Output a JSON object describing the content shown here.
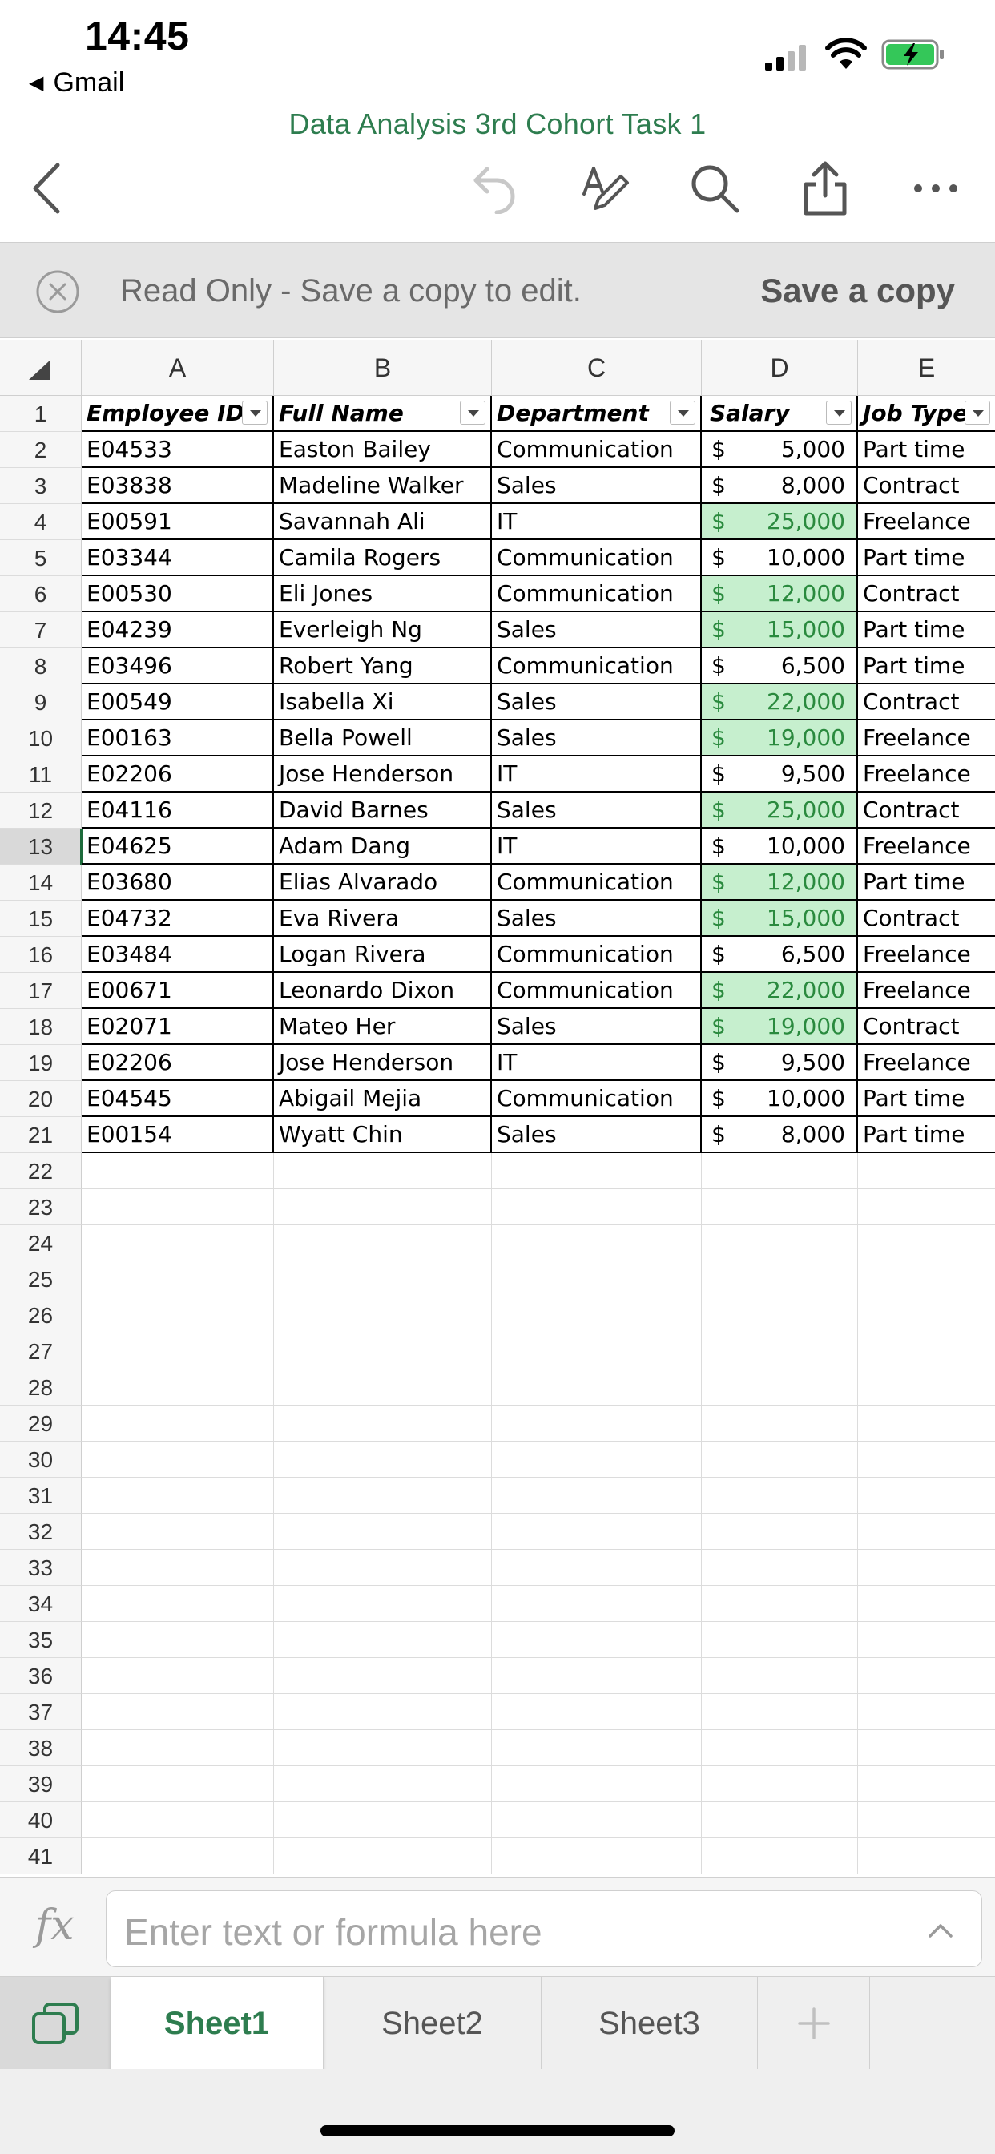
{
  "status_bar": {
    "time": "14:45",
    "back_app": "Gmail"
  },
  "document": {
    "title": "Data Analysis  3rd Cohort Task 1"
  },
  "toolbar": {
    "icons": [
      "back-chevron-icon",
      "undo-icon",
      "draw-pen-icon",
      "search-icon",
      "share-icon",
      "more-icon"
    ]
  },
  "banner": {
    "text": "Read Only - Save a copy to edit.",
    "action": "Save a copy"
  },
  "columns": [
    "A",
    "B",
    "C",
    "D",
    "E"
  ],
  "table": {
    "headers": [
      "Employee ID",
      "Full Name",
      "Department",
      "Salary",
      "Job Type"
    ],
    "rows": [
      {
        "id": "E04533",
        "name": "Easton Bailey",
        "dept": "Communication",
        "currency": "$",
        "salary": "5,000",
        "type": "Part time",
        "highlight": false
      },
      {
        "id": "E03838",
        "name": "Madeline Walker",
        "dept": "Sales",
        "currency": "$",
        "salary": "8,000",
        "type": "Contract",
        "highlight": false
      },
      {
        "id": "E00591",
        "name": "Savannah Ali",
        "dept": "IT",
        "currency": "$",
        "salary": "25,000",
        "type": "Freelance",
        "highlight": true
      },
      {
        "id": "E03344",
        "name": "Camila Rogers",
        "dept": "Communication",
        "currency": "$",
        "salary": "10,000",
        "type": "Part time",
        "highlight": false
      },
      {
        "id": "E00530",
        "name": "Eli Jones",
        "dept": "Communication",
        "currency": "$",
        "salary": "12,000",
        "type": "Contract",
        "highlight": true
      },
      {
        "id": "E04239",
        "name": "Everleigh Ng",
        "dept": "Sales",
        "currency": "$",
        "salary": "15,000",
        "type": "Part time",
        "highlight": true
      },
      {
        "id": "E03496",
        "name": "Robert Yang",
        "dept": "Communication",
        "currency": "$",
        "salary": "6,500",
        "type": "Part time",
        "highlight": false
      },
      {
        "id": "E00549",
        "name": "Isabella Xi",
        "dept": "Sales",
        "currency": "$",
        "salary": "22,000",
        "type": "Contract",
        "highlight": true
      },
      {
        "id": "E00163",
        "name": "Bella Powell",
        "dept": "Sales",
        "currency": "$",
        "salary": "19,000",
        "type": "Freelance",
        "highlight": true
      },
      {
        "id": "E02206",
        "name": "Jose Henderson",
        "dept": "IT",
        "currency": "$",
        "salary": "9,500",
        "type": "Freelance",
        "highlight": false
      },
      {
        "id": "E04116",
        "name": "David Barnes",
        "dept": "Sales",
        "currency": "$",
        "salary": "25,000",
        "type": "Contract",
        "highlight": true
      },
      {
        "id": "E04625",
        "name": "Adam Dang",
        "dept": "IT",
        "currency": "$",
        "salary": "10,000",
        "type": "Freelance",
        "highlight": false
      },
      {
        "id": "E03680",
        "name": "Elias Alvarado",
        "dept": "Communication",
        "currency": "$",
        "salary": "12,000",
        "type": "Part time",
        "highlight": true
      },
      {
        "id": "E04732",
        "name": "Eva Rivera",
        "dept": "Sales",
        "currency": "$",
        "salary": "15,000",
        "type": "Contract",
        "highlight": true
      },
      {
        "id": "E03484",
        "name": "Logan Rivera",
        "dept": "Communication",
        "currency": "$",
        "salary": "6,500",
        "type": "Freelance",
        "highlight": false
      },
      {
        "id": "E00671",
        "name": "Leonardo Dixon",
        "dept": "Communication",
        "currency": "$",
        "salary": "22,000",
        "type": "Freelance",
        "highlight": true
      },
      {
        "id": "E02071",
        "name": "Mateo Her",
        "dept": "Sales",
        "currency": "$",
        "salary": "19,000",
        "type": "Contract",
        "highlight": true
      },
      {
        "id": "E02206",
        "name": "Jose Henderson",
        "dept": "IT",
        "currency": "$",
        "salary": "9,500",
        "type": "Freelance",
        "highlight": false
      },
      {
        "id": "E04545",
        "name": "Abigail Mejia",
        "dept": "Communication",
        "currency": "$",
        "salary": "10,000",
        "type": "Part time",
        "highlight": false
      },
      {
        "id": "E00154",
        "name": "Wyatt Chin",
        "dept": "Sales",
        "currency": "$",
        "salary": "8,000",
        "type": "Part time",
        "highlight": false
      }
    ]
  },
  "row_numbers": [
    "1",
    "2",
    "3",
    "4",
    "5",
    "6",
    "7",
    "8",
    "9",
    "10",
    "11",
    "12",
    "13",
    "14",
    "15",
    "16",
    "17",
    "18",
    "19",
    "20",
    "21",
    "22",
    "23",
    "24",
    "25",
    "26",
    "27",
    "28",
    "29",
    "30",
    "31",
    "32",
    "33",
    "34",
    "35",
    "36",
    "37",
    "38",
    "39",
    "40",
    "41"
  ],
  "selected_row": "13",
  "formula_bar": {
    "placeholder": "Enter text or formula here"
  },
  "sheet_tabs": [
    {
      "label": "Sheet1",
      "active": true
    },
    {
      "label": "Sheet2",
      "active": false
    },
    {
      "label": "Sheet3",
      "active": false
    }
  ],
  "colors": {
    "accent_green": "#2e7d4f",
    "highlight_fill": "#c6efce",
    "highlight_text": "#2a8a3e"
  }
}
